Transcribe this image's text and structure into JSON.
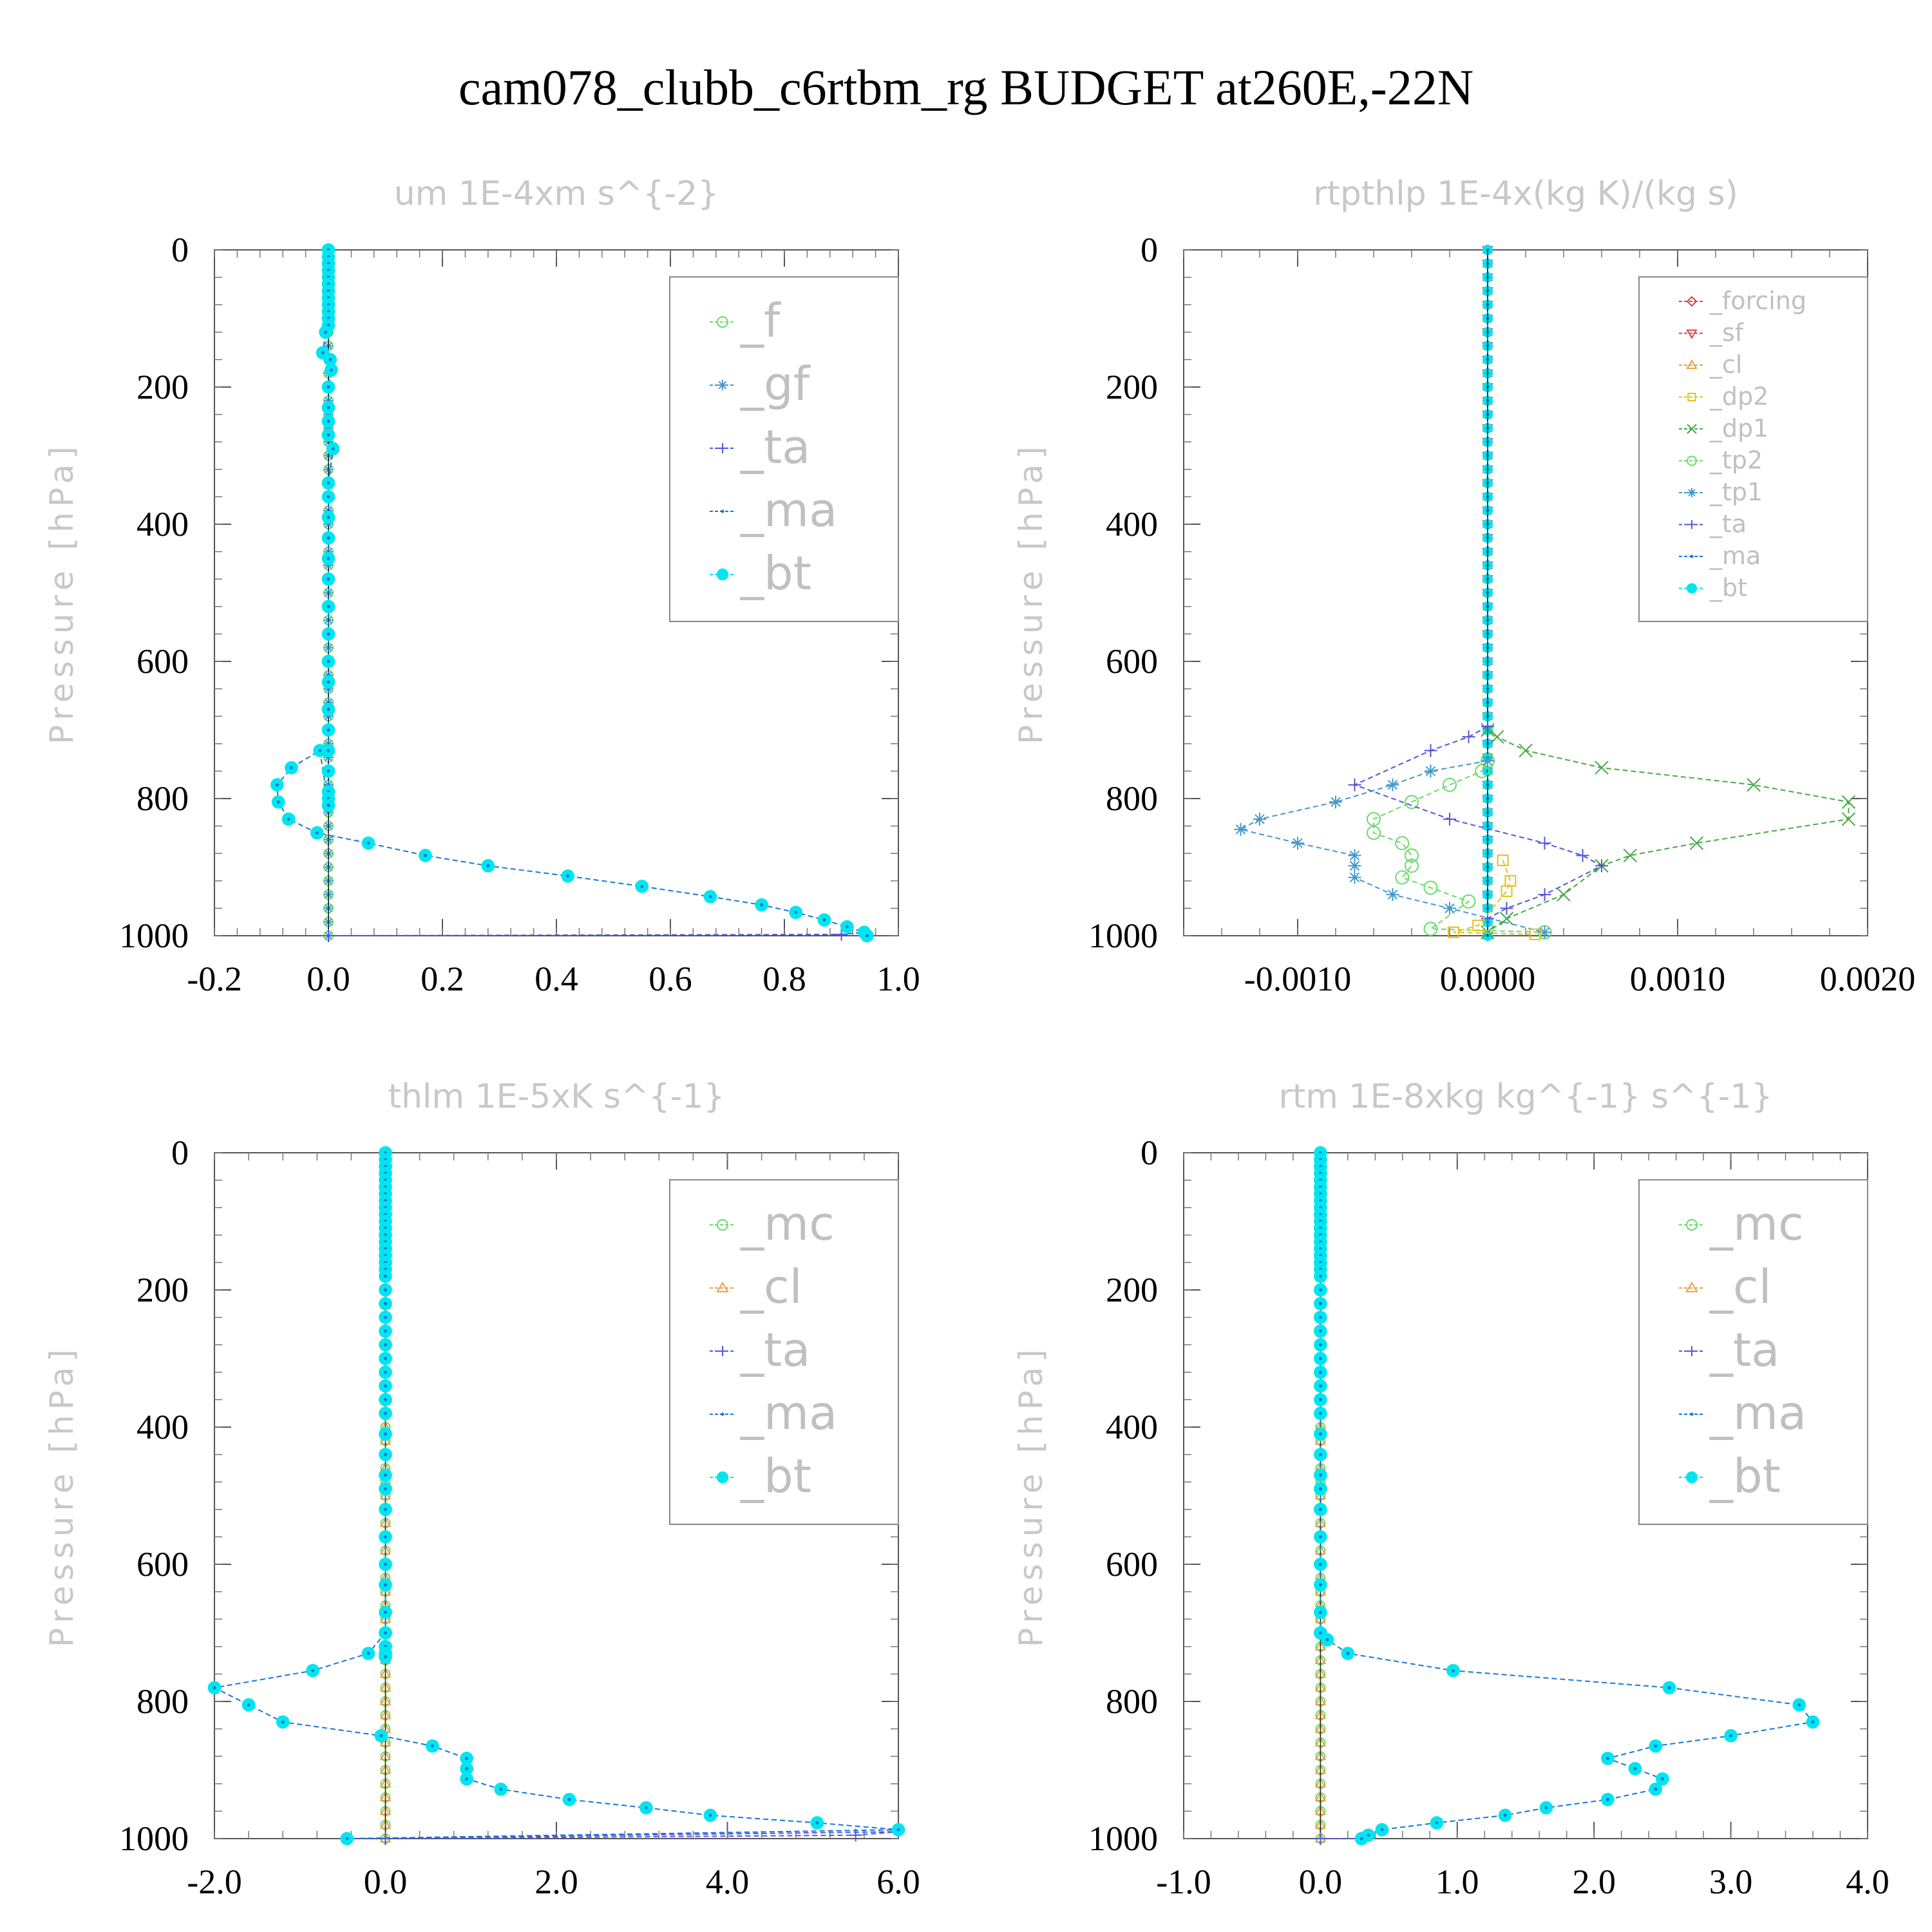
{
  "title": "cam078_clubb_c6rtbm_rg  BUDGET at260E,-22N",
  "colors": {
    "_f": "#66dd66",
    "_gf": "#4499cc",
    "_ta": "#5555dd",
    "_ma": "#1177dd",
    "_bt": "#00e5ee",
    "_forcing": "#dd4444",
    "_sf": "#dd4444",
    "_cl": "#e8a040",
    "_dp2": "#e0c020",
    "_dp1": "#44aa44",
    "_tp2": "#66dd66",
    "_tp1": "#4499cc",
    "_mc": "#66dd66"
  },
  "chart_data": [
    {
      "type": "line",
      "title": "um  1E-4xm s^{-2}",
      "ylabel": "Pressure [hPa]",
      "ylim": [
        1000,
        0
      ],
      "xlim": [
        -0.2,
        1.0
      ],
      "xticks": [
        "-0.2",
        "0.0",
        "0.2",
        "0.4",
        "0.6",
        "0.8",
        "1.0"
      ],
      "yticks": [
        "0",
        "200",
        "400",
        "600",
        "800",
        "1000"
      ],
      "legend": [
        "_f",
        "_gf",
        "_ta",
        "_ma",
        "_bt"
      ],
      "legend_style": "large",
      "zero_series": [
        "_f",
        "_gf"
      ],
      "series": [
        {
          "name": "_bt",
          "x": [
            0,
            0,
            0,
            0,
            0,
            0,
            0,
            0,
            0,
            0,
            0,
            0,
            -0.005,
            -0.01,
            0.003,
            0.005,
            0,
            0,
            0,
            0,
            0.008,
            0,
            0,
            0,
            0,
            0,
            0,
            0,
            0,
            0,
            0,
            0,
            0,
            0,
            0,
            0,
            0,
            0,
            -0.015,
            -0.065,
            -0.09,
            -0.088,
            -0.07,
            -0.02,
            0.07,
            0.17,
            0.28,
            0.42,
            0.55,
            0.67,
            0.76,
            0.82,
            0.87,
            0.91,
            0.94,
            0.945
          ],
          "y": [
            0,
            10,
            20,
            30,
            40,
            50,
            60,
            70,
            80,
            90,
            100,
            110,
            120,
            150,
            160,
            175,
            200,
            230,
            250,
            270,
            290,
            340,
            360,
            390,
            420,
            450,
            480,
            520,
            560,
            600,
            630,
            670,
            700,
            730,
            760,
            790,
            800,
            810,
            730,
            755,
            780,
            805,
            830,
            850,
            865,
            883,
            898,
            913,
            928,
            943,
            955,
            966,
            977,
            987,
            995,
            1000
          ]
        },
        {
          "name": "_ta",
          "x": [
            0,
            0.9,
            0.94
          ],
          "y": [
            1000,
            998,
            995
          ]
        }
      ]
    },
    {
      "type": "line",
      "title": "rtpthlp  1E-4x(kg K)/(kg s)",
      "ylabel": "Pressure [hPa]",
      "ylim": [
        1000,
        0
      ],
      "xlim": [
        -0.0016,
        0.002
      ],
      "xticks": [
        "-0.0010",
        "0.0000",
        "0.0010",
        "0.0020"
      ],
      "yticks": [
        "0",
        "200",
        "400",
        "600",
        "800",
        "1000"
      ],
      "legend": [
        "_forcing",
        "_sf",
        "_cl",
        "_dp2",
        "_dp1",
        "_tp2",
        "_tp1",
        "_ta",
        "_ma",
        "_bt"
      ],
      "legend_style": "small",
      "zero_series": [
        "_forcing",
        "_sf",
        "_cl",
        "_bt",
        "_ma"
      ],
      "series": [
        {
          "name": "_dp1",
          "x": [
            0,
            5e-05,
            0.0002,
            0.0006,
            0.0014,
            0.0019,
            0.0019,
            0.0011,
            0.00075,
            0.0006,
            0.0004,
            0.0001,
            0
          ],
          "y": [
            700,
            710,
            730,
            755,
            780,
            805,
            830,
            865,
            883,
            898,
            940,
            975,
            995
          ]
        },
        {
          "name": "_tp2",
          "x": [
            0,
            -3e-05,
            -0.0002,
            -0.0004,
            -0.0006,
            -0.0006,
            -0.00045,
            -0.0004,
            -0.0004,
            -0.00045,
            -0.0003,
            -0.0001,
            -0.0003,
            0.0003
          ],
          "y": [
            745,
            760,
            780,
            805,
            830,
            850,
            865,
            883,
            898,
            915,
            930,
            950,
            990,
            995
          ]
        },
        {
          "name": "_tp1",
          "x": [
            0,
            -0.0003,
            -0.0005,
            -0.0008,
            -0.0012,
            -0.0013,
            -0.001,
            -0.0007,
            -0.0007,
            -0.0007,
            -0.0005,
            -0.0002,
            0.0003
          ],
          "y": [
            745,
            760,
            780,
            805,
            830,
            845,
            865,
            883,
            898,
            915,
            940,
            960,
            995
          ]
        },
        {
          "name": "_ta",
          "x": [
            0,
            -0.0001,
            -0.0003,
            -0.0007,
            -0.0002,
            0.0003,
            0.0005,
            0.0006,
            0.0003,
            0.0001,
            0
          ],
          "y": [
            695,
            710,
            730,
            780,
            830,
            865,
            883,
            898,
            940,
            960,
            975
          ]
        },
        {
          "name": "_dp2",
          "x": [
            8e-05,
            0.00012,
            0.0001,
            -5e-05,
            -0.00018,
            0.00025
          ],
          "y": [
            890,
            920,
            935,
            985,
            995,
            998
          ]
        }
      ]
    },
    {
      "type": "line",
      "title": "thlm  1E-5xK s^{-1}",
      "ylabel": "Pressure [hPa]",
      "ylim": [
        1000,
        0
      ],
      "xlim": [
        -2.0,
        6.0
      ],
      "xticks": [
        "-2.0",
        "0.0",
        "2.0",
        "4.0",
        "6.0"
      ],
      "yticks": [
        "0",
        "200",
        "400",
        "600",
        "800",
        "1000"
      ],
      "legend": [
        "_mc",
        "_cl",
        "_ta",
        "_ma",
        "_bt"
      ],
      "legend_style": "large",
      "zero_series": [
        "_mc",
        "_cl"
      ],
      "series": [
        {
          "name": "_bt",
          "x": [
            0,
            0,
            0,
            0,
            0,
            0,
            0,
            0,
            0,
            0,
            0,
            0,
            0,
            0,
            0,
            0,
            0,
            0,
            0,
            0,
            0,
            0,
            0,
            0,
            0,
            0,
            0,
            0,
            0,
            0,
            0,
            0,
            0,
            0,
            0,
            0,
            0,
            0,
            0,
            0,
            0,
            0,
            0,
            -0.2,
            -0.85,
            -2.0,
            -1.6,
            -1.2,
            -0.05,
            0.55,
            0.95,
            0.95,
            0.95,
            1.35,
            2.15,
            3.05,
            3.8,
            5.05,
            6.0,
            -0.45
          ],
          "y": [
            0,
            10,
            20,
            30,
            40,
            50,
            60,
            70,
            80,
            90,
            100,
            110,
            120,
            130,
            140,
            150,
            160,
            170,
            180,
            200,
            220,
            240,
            260,
            280,
            300,
            320,
            340,
            360,
            380,
            410,
            440,
            470,
            490,
            520,
            560,
            600,
            630,
            670,
            700,
            720,
            730,
            735,
            700,
            730,
            755,
            780,
            805,
            830,
            850,
            865,
            883,
            898,
            913,
            928,
            943,
            955,
            966,
            977,
            987,
            1000
          ]
        },
        {
          "name": "_ta",
          "x": [
            0,
            5.5,
            6.0,
            -0.45
          ],
          "y": [
            1000,
            995,
            990,
            1000
          ]
        }
      ]
    },
    {
      "type": "line",
      "title": "rtm  1E-8xkg kg^{-1} s^{-1}",
      "ylabel": "Pressure [hPa]",
      "ylim": [
        1000,
        0
      ],
      "xlim": [
        -1.0,
        4.0
      ],
      "xticks": [
        "-1.0",
        "0.0",
        "1.0",
        "2.0",
        "3.0",
        "4.0"
      ],
      "yticks": [
        "0",
        "200",
        "400",
        "600",
        "800",
        "1000"
      ],
      "legend": [
        "_mc",
        "_cl",
        "_ta",
        "_ma",
        "_bt"
      ],
      "legend_style": "large",
      "zero_series": [
        "_mc",
        "_cl"
      ],
      "series": [
        {
          "name": "_bt",
          "x": [
            0,
            0,
            0,
            0,
            0,
            0,
            0,
            0,
            0,
            0,
            0,
            0,
            0,
            0,
            0,
            0,
            0,
            0,
            0,
            0,
            0,
            0,
            0,
            0,
            0,
            0,
            0,
            0,
            0,
            0,
            0,
            0,
            0,
            0,
            0,
            0,
            0,
            0,
            0,
            0,
            0.05,
            0.2,
            0.97,
            2.55,
            3.5,
            3.6,
            3.0,
            2.45,
            2.1,
            2.3,
            2.5,
            2.45,
            2.1,
            1.65,
            1.35,
            0.85,
            0.45,
            0.35,
            0.3
          ],
          "y": [
            0,
            10,
            20,
            30,
            40,
            50,
            60,
            70,
            80,
            90,
            100,
            110,
            120,
            130,
            140,
            150,
            160,
            170,
            180,
            200,
            220,
            240,
            260,
            280,
            300,
            320,
            340,
            360,
            380,
            410,
            440,
            470,
            490,
            520,
            560,
            600,
            630,
            670,
            700,
            700,
            710,
            730,
            755,
            780,
            805,
            830,
            850,
            865,
            883,
            898,
            913,
            928,
            943,
            955,
            966,
            977,
            987,
            995,
            1000
          ]
        },
        {
          "name": "_ta",
          "x": [
            0,
            0.3
          ],
          "y": [
            1000,
            1000
          ]
        }
      ]
    }
  ]
}
